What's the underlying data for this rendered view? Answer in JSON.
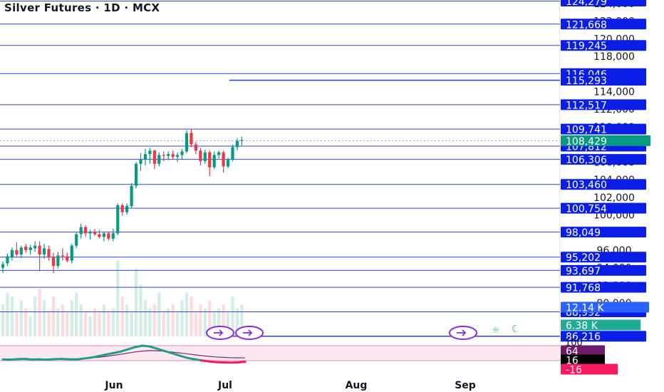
{
  "header": {
    "title": "Silver Futures · 1D · MCX"
  },
  "chart_data": {
    "type": "candlestick",
    "title": "Silver Futures · 1D · MCX",
    "x_tick_labels": [
      "Jun",
      "Jul",
      "Aug",
      "Sep"
    ],
    "y_tick_labels": [
      "124,000",
      "122,000",
      "120,000",
      "118,000",
      "116,000",
      "114,000",
      "112,000",
      "110,000",
      "108,000",
      "106,000",
      "104,000",
      "102,000",
      "100,000",
      "98,000",
      "96,000",
      "94,000",
      "92,000",
      "90,000"
    ],
    "y_range": [
      86000,
      124500
    ],
    "last_price": {
      "value": 108429,
      "label": "108,429",
      "color": "#22ab94"
    },
    "levels": [
      {
        "value": 124279,
        "label": "124,279",
        "start": "left"
      },
      {
        "value": 121668,
        "label": "121,668",
        "start": "left"
      },
      {
        "value": 119245,
        "label": "119,245",
        "start": "left"
      },
      {
        "value": 116046,
        "label": "116,046",
        "start": "left"
      },
      {
        "value": 115293,
        "label": "115,293",
        "start": "mid"
      },
      {
        "value": 112517,
        "label": "112,517",
        "start": "left"
      },
      {
        "value": 109741,
        "label": "109,741",
        "start": "left"
      },
      {
        "value": 107812,
        "label": "107,812",
        "start": "left"
      },
      {
        "value": 106306,
        "label": "106,306",
        "start": "left"
      },
      {
        "value": 103460,
        "label": "103,460",
        "start": "left"
      },
      {
        "value": 100754,
        "label": "100,754",
        "start": "left"
      },
      {
        "value": 98049,
        "label": "98,049",
        "start": "left"
      },
      {
        "value": 95202,
        "label": "95,202",
        "start": "left"
      },
      {
        "value": 93697,
        "label": "93,697",
        "start": "left"
      },
      {
        "value": 91768,
        "label": "91,768",
        "start": "left"
      },
      {
        "value": 88992,
        "label": "88,992",
        "start": "left"
      },
      {
        "value": 86216,
        "label": "86,216",
        "start": "mid"
      }
    ],
    "candles": [
      {
        "o": 94000,
        "h": 94700,
        "l": 93400,
        "c": 94400
      },
      {
        "o": 94500,
        "h": 95600,
        "l": 94200,
        "c": 95300
      },
      {
        "o": 95200,
        "h": 96300,
        "l": 94800,
        "c": 96000
      },
      {
        "o": 96000,
        "h": 96900,
        "l": 95300,
        "c": 95500
      },
      {
        "o": 95500,
        "h": 96500,
        "l": 95100,
        "c": 96300
      },
      {
        "o": 96400,
        "h": 96700,
        "l": 95700,
        "c": 96000
      },
      {
        "o": 96000,
        "h": 96600,
        "l": 95500,
        "c": 96300
      },
      {
        "o": 96200,
        "h": 97000,
        "l": 95800,
        "c": 96500
      },
      {
        "o": 96500,
        "h": 97000,
        "l": 93600,
        "c": 95500
      },
      {
        "o": 95500,
        "h": 96700,
        "l": 95000,
        "c": 96200
      },
      {
        "o": 96100,
        "h": 96500,
        "l": 94800,
        "c": 95200
      },
      {
        "o": 95200,
        "h": 95700,
        "l": 93400,
        "c": 94200
      },
      {
        "o": 94200,
        "h": 95800,
        "l": 93900,
        "c": 95400
      },
      {
        "o": 95400,
        "h": 96200,
        "l": 94800,
        "c": 95300
      },
      {
        "o": 95300,
        "h": 95700,
        "l": 94600,
        "c": 94800
      },
      {
        "o": 94800,
        "h": 96700,
        "l": 94500,
        "c": 96500
      },
      {
        "o": 96500,
        "h": 98000,
        "l": 96200,
        "c": 97800
      },
      {
        "o": 97800,
        "h": 99000,
        "l": 97300,
        "c": 98600
      },
      {
        "o": 98600,
        "h": 98800,
        "l": 97500,
        "c": 97900
      },
      {
        "o": 97900,
        "h": 98300,
        "l": 97200,
        "c": 98100
      },
      {
        "o": 98100,
        "h": 98400,
        "l": 97600,
        "c": 97800
      },
      {
        "o": 97800,
        "h": 98300,
        "l": 97300,
        "c": 97500
      },
      {
        "o": 97500,
        "h": 98100,
        "l": 97000,
        "c": 97900
      },
      {
        "o": 97900,
        "h": 98100,
        "l": 97100,
        "c": 97300
      },
      {
        "o": 97300,
        "h": 98400,
        "l": 97000,
        "c": 97900
      },
      {
        "o": 97900,
        "h": 101300,
        "l": 97700,
        "c": 101100
      },
      {
        "o": 101100,
        "h": 101300,
        "l": 99900,
        "c": 100300
      },
      {
        "o": 100300,
        "h": 101300,
        "l": 100000,
        "c": 101000
      },
      {
        "o": 101000,
        "h": 103600,
        "l": 100800,
        "c": 103300
      },
      {
        "o": 103300,
        "h": 106000,
        "l": 103000,
        "c": 105800
      },
      {
        "o": 105800,
        "h": 107000,
        "l": 105000,
        "c": 106300
      },
      {
        "o": 106300,
        "h": 107500,
        "l": 105600,
        "c": 106900
      },
      {
        "o": 106900,
        "h": 107600,
        "l": 105800,
        "c": 107300
      },
      {
        "o": 107300,
        "h": 107400,
        "l": 105200,
        "c": 105800
      },
      {
        "o": 105800,
        "h": 107100,
        "l": 105500,
        "c": 106800
      },
      {
        "o": 106800,
        "h": 107200,
        "l": 106100,
        "c": 106700
      },
      {
        "o": 106700,
        "h": 107200,
        "l": 106200,
        "c": 106900
      },
      {
        "o": 106900,
        "h": 107300,
        "l": 106300,
        "c": 106600
      },
      {
        "o": 106600,
        "h": 107100,
        "l": 106000,
        "c": 106800
      },
      {
        "o": 106800,
        "h": 107500,
        "l": 106300,
        "c": 107200
      },
      {
        "o": 107200,
        "h": 109600,
        "l": 107000,
        "c": 109300
      },
      {
        "o": 109300,
        "h": 109800,
        "l": 107700,
        "c": 108000
      },
      {
        "o": 108000,
        "h": 108300,
        "l": 106900,
        "c": 107300
      },
      {
        "o": 107300,
        "h": 107600,
        "l": 105600,
        "c": 106100
      },
      {
        "o": 106100,
        "h": 107400,
        "l": 105800,
        "c": 107100
      },
      {
        "o": 107100,
        "h": 107300,
        "l": 104400,
        "c": 105400
      },
      {
        "o": 105400,
        "h": 107200,
        "l": 105200,
        "c": 106800
      },
      {
        "o": 106800,
        "h": 107300,
        "l": 106400,
        "c": 107100
      },
      {
        "o": 107100,
        "h": 107300,
        "l": 104800,
        "c": 105500
      },
      {
        "o": 105500,
        "h": 106500,
        "l": 105300,
        "c": 106300
      },
      {
        "o": 106300,
        "h": 108000,
        "l": 106100,
        "c": 107700
      },
      {
        "o": 107700,
        "h": 108700,
        "l": 107300,
        "c": 108400
      },
      {
        "o": 108400,
        "h": 108900,
        "l": 107900,
        "c": 108500
      }
    ],
    "volume": {
      "labels": [
        "12.14 K",
        "6.38 K"
      ],
      "bars": [
        0.4,
        0.55,
        0.5,
        0.3,
        0.45,
        0.35,
        0.25,
        0.5,
        0.6,
        0.45,
        0.3,
        0.5,
        0.35,
        0.4,
        0.3,
        0.45,
        0.55,
        0.4,
        0.3,
        0.25,
        0.35,
        0.3,
        0.4,
        0.3,
        0.35,
        0.95,
        0.5,
        0.4,
        0.3,
        0.85,
        0.65,
        0.45,
        0.35,
        0.4,
        0.55,
        0.3,
        0.35,
        0.4,
        0.3,
        0.45,
        0.55,
        0.5,
        0.3,
        0.4,
        0.35,
        0.45,
        0.3,
        0.35,
        0.4,
        0.3,
        0.5,
        0.35,
        0.4
      ]
    },
    "oscillator": {
      "labels": [
        "100",
        "64",
        "16",
        "-16"
      ],
      "k": [
        8,
        6,
        10,
        12,
        7,
        9,
        6,
        10,
        12,
        9,
        7,
        14,
        20,
        30,
        40,
        50,
        60,
        75,
        90,
        100,
        95,
        80,
        65,
        50,
        35,
        20,
        10,
        2,
        -5,
        -10,
        -12,
        -13,
        -12,
        -8
      ],
      "d": [
        12,
        11,
        11,
        12,
        11,
        10,
        10,
        11,
        11,
        12,
        13,
        15,
        18,
        22,
        28,
        35,
        42,
        50,
        58,
        64,
        67,
        66,
        63,
        58,
        52,
        46,
        40,
        34,
        29,
        25,
        22,
        20,
        19,
        18
      ]
    },
    "icons": [
      "replay-icon",
      "sun-icon",
      "moon-icon"
    ],
    "colors": {
      "up": "#089981",
      "down": "#f23645",
      "level": "#1f2fcc",
      "label_bg": "#0a1ee6",
      "volume_label": "#2962ff",
      "volume_label2": "#22ab94",
      "osc_label_top": "#6a1b6a",
      "osc_label_mid": "#000000",
      "osc_label_low": "#f7195f"
    }
  }
}
